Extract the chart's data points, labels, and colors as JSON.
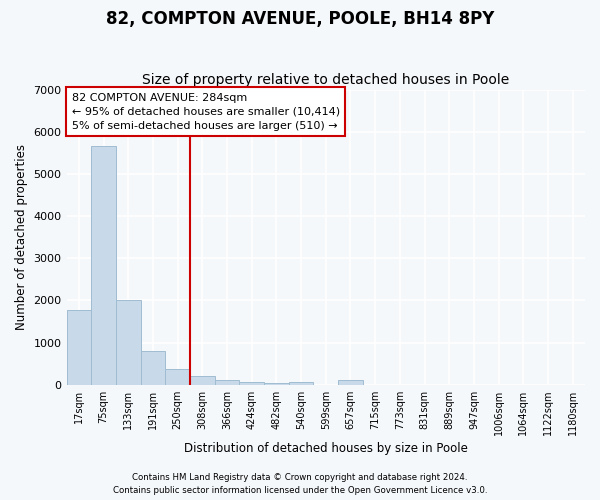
{
  "title": "82, COMPTON AVENUE, POOLE, BH14 8PY",
  "subtitle": "Size of property relative to detached houses in Poole",
  "xlabel": "Distribution of detached houses by size in Poole",
  "ylabel": "Number of detached properties",
  "bar_labels": [
    "17sqm",
    "75sqm",
    "133sqm",
    "191sqm",
    "250sqm",
    "308sqm",
    "366sqm",
    "424sqm",
    "482sqm",
    "540sqm",
    "599sqm",
    "657sqm",
    "715sqm",
    "773sqm",
    "831sqm",
    "889sqm",
    "947sqm",
    "1006sqm",
    "1064sqm",
    "1122sqm",
    "1180sqm"
  ],
  "bar_values": [
    1760,
    5650,
    2020,
    800,
    380,
    210,
    105,
    75,
    50,
    75,
    0,
    100,
    0,
    0,
    0,
    0,
    0,
    0,
    0,
    0,
    0
  ],
  "bar_color": "#c8daea",
  "bar_edge_color": "#a0bcd0",
  "red_line_x": 5,
  "ylim": [
    0,
    7000
  ],
  "yticks": [
    0,
    1000,
    2000,
    3000,
    4000,
    5000,
    6000,
    7000
  ],
  "annotation_text": "82 COMPTON AVENUE: 284sqm\n← 95% of detached houses are smaller (10,414)\n5% of semi-detached houses are larger (510) →",
  "annotation_box_color": "#ffffff",
  "annotation_border_color": "#cc0000",
  "footer_line1": "Contains HM Land Registry data © Crown copyright and database right 2024.",
  "footer_line2": "Contains public sector information licensed under the Open Government Licence v3.0.",
  "background_color": "#f5f8fb",
  "grid_color": "#ffffff",
  "title_fontsize": 12,
  "subtitle_fontsize": 10,
  "title_fontweight": "bold"
}
